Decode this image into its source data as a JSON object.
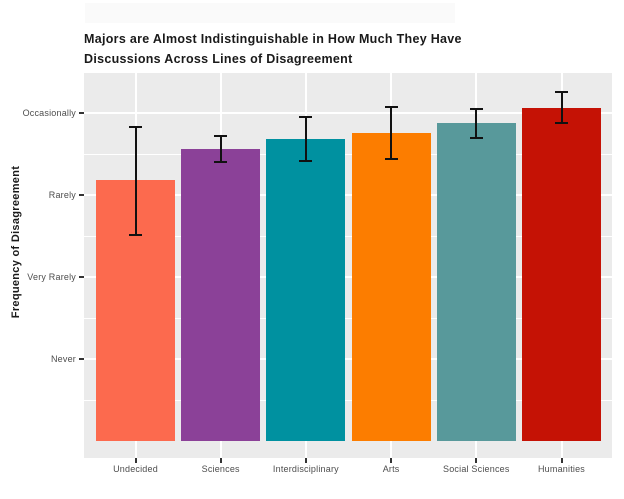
{
  "chart_data": {
    "type": "bar",
    "title": "Majors are Almost Indistinguishable in How Much They Have Discussions Across Lines of Disagreement",
    "title_lines": [
      "Majors are Almost Indistinguishable in How Much They Have",
      "Discussions Across Lines of Disagreement"
    ],
    "ylabel": "Frequency of Disagreement",
    "xlabel": "",
    "categories": [
      "Undecided",
      "Sciences",
      "Interdisciplinary",
      "Arts",
      "Social Sciences",
      "Humanities"
    ],
    "values": [
      3.18,
      3.56,
      3.68,
      3.76,
      3.88,
      4.06
    ],
    "error_low": [
      2.51,
      3.4,
      3.41,
      3.44,
      3.7,
      3.88
    ],
    "error_high": [
      3.83,
      3.72,
      3.95,
      4.07,
      4.05,
      4.26
    ],
    "bar_colors": [
      "#FC6A4E",
      "#8B4198",
      "#0091A0",
      "#FC7D00",
      "#58999B",
      "#C51205"
    ],
    "errorbar_color": "#111111",
    "y_axis": {
      "tick_values": [
        4,
        3,
        2,
        1
      ],
      "tick_labels": [
        "Occasionally",
        "Rarely",
        "Very Rarely",
        "Never"
      ],
      "minor_tick_values": [
        3.5,
        2.5,
        1.5,
        0.5
      ],
      "scale_note": "ordinal scale: 1=Never, 2=Very Rarely, 3=Rarely, 4=Occasionally",
      "ylim": [
        -0.22,
        4.47
      ]
    },
    "legend": "none",
    "grid": "white major and minor horizontal lines, white major vertical lines, on gray panel",
    "panel_background": "#EBEBEB"
  }
}
